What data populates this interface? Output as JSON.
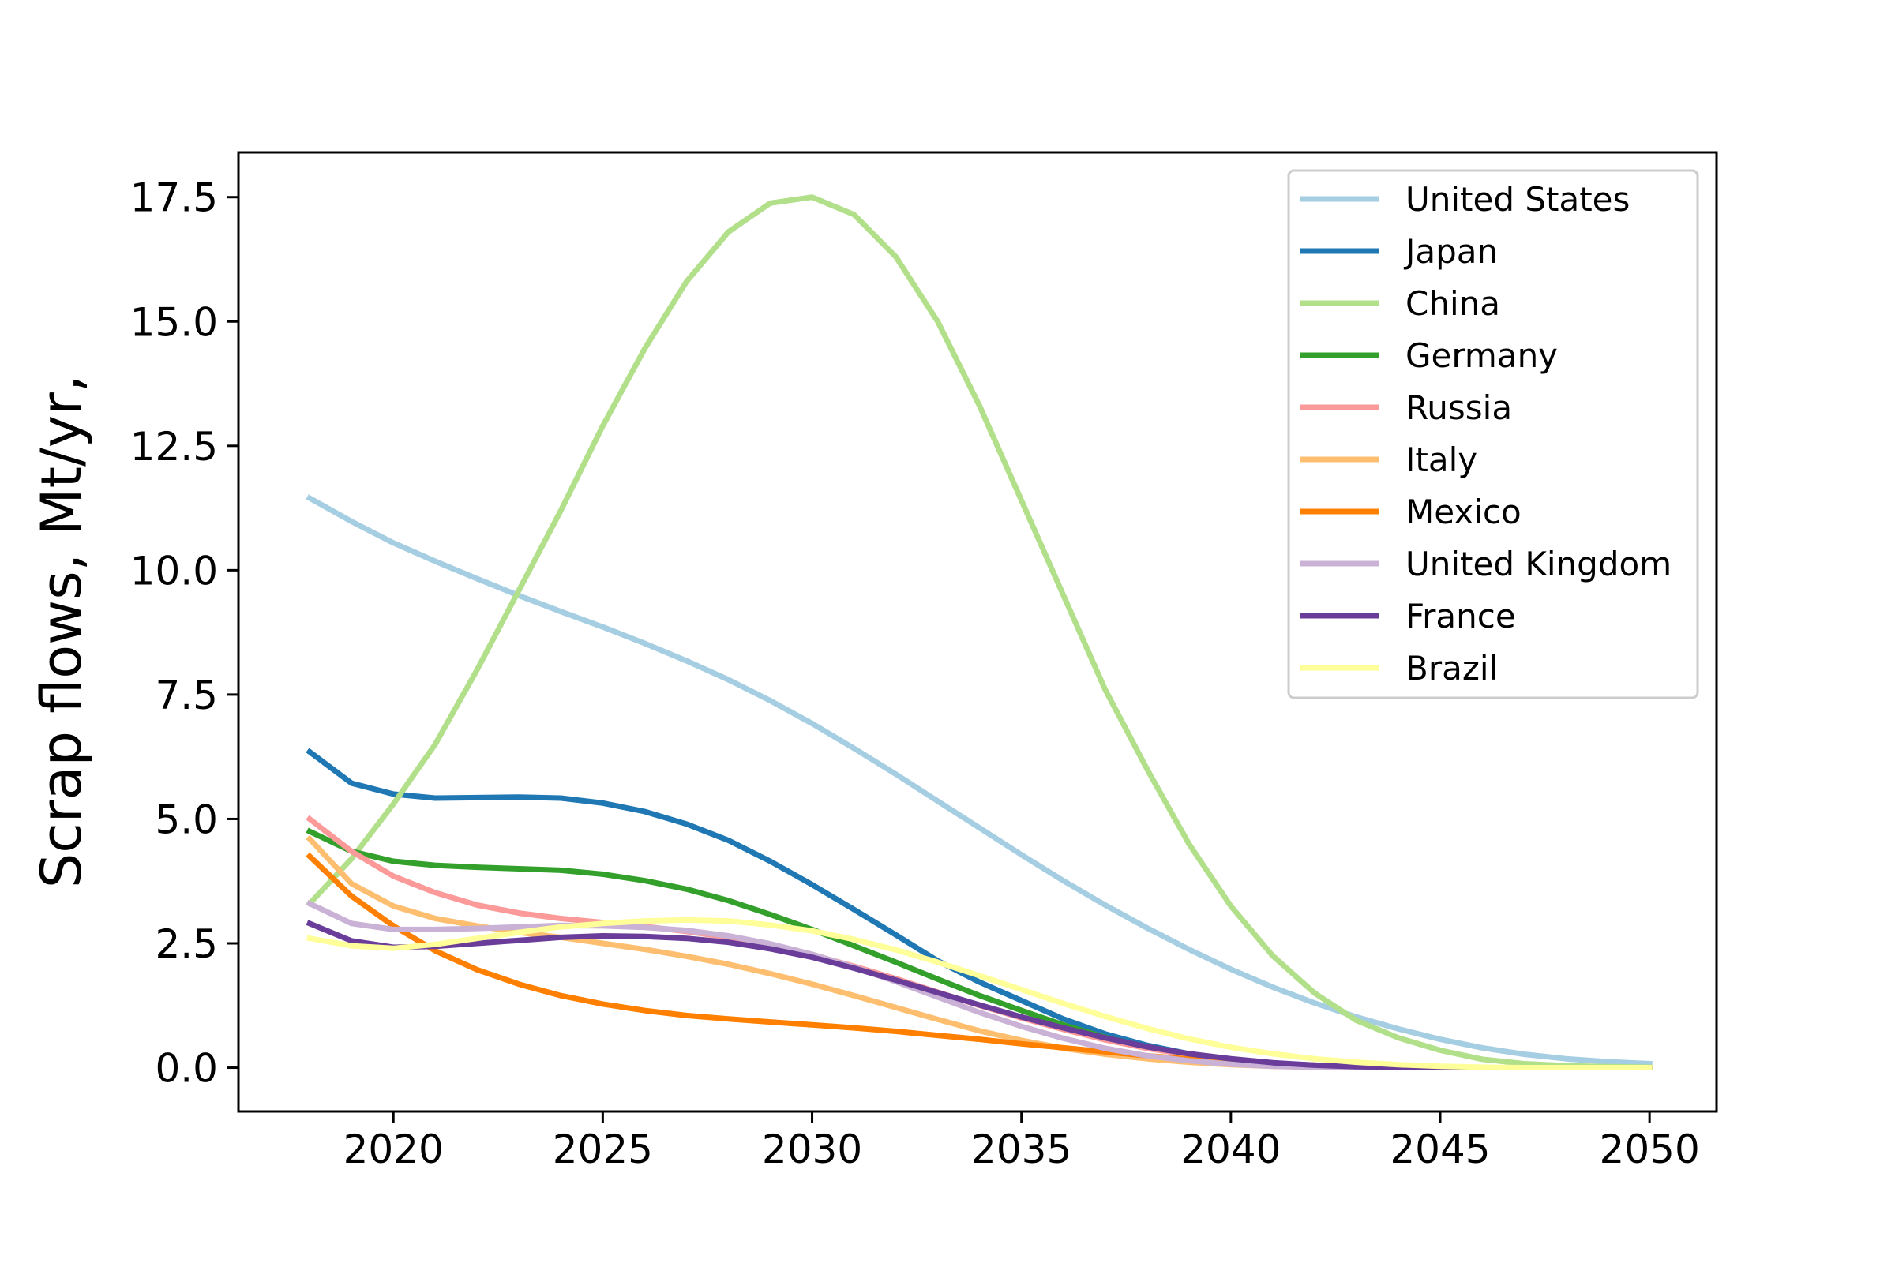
{
  "chart_data": {
    "type": "line",
    "title": "",
    "xlabel": "",
    "ylabel": "Scrap flows, Mt/yr,",
    "xlim": [
      2016.3,
      2051.6
    ],
    "ylim": [
      -0.88,
      18.4
    ],
    "xticks": [
      2020,
      2025,
      2030,
      2035,
      2040,
      2045,
      2050
    ],
    "xtick_labels": [
      "2020",
      "2025",
      "2030",
      "2035",
      "2040",
      "2045",
      "2050"
    ],
    "yticks": [
      0.0,
      2.5,
      5.0,
      7.5,
      10.0,
      12.5,
      15.0,
      17.5
    ],
    "ytick_labels": [
      "0.0",
      "2.5",
      "5.0",
      "7.5",
      "10.0",
      "12.5",
      "15.0",
      "17.5"
    ],
    "grid": false,
    "legend_position": "top-right",
    "x": [
      2018,
      2019,
      2020,
      2021,
      2022,
      2023,
      2024,
      2025,
      2026,
      2027,
      2028,
      2029,
      2030,
      2031,
      2032,
      2033,
      2034,
      2035,
      2036,
      2037,
      2038,
      2039,
      2040,
      2041,
      2042,
      2043,
      2044,
      2045,
      2046,
      2047,
      2048,
      2049,
      2050
    ],
    "series": [
      {
        "name": "United States",
        "color": "#a6cee3",
        "values": [
          11.45,
          10.98,
          10.55,
          10.18,
          9.83,
          9.49,
          9.17,
          8.86,
          8.53,
          8.18,
          7.8,
          7.38,
          6.92,
          6.42,
          5.9,
          5.36,
          4.82,
          4.28,
          3.76,
          3.27,
          2.81,
          2.38,
          1.98,
          1.62,
          1.3,
          1.02,
          0.78,
          0.57,
          0.4,
          0.27,
          0.18,
          0.12,
          0.08
        ]
      },
      {
        "name": "Japan",
        "color": "#1f78b4",
        "values": [
          6.35,
          5.72,
          5.5,
          5.42,
          5.43,
          5.44,
          5.42,
          5.32,
          5.15,
          4.9,
          4.57,
          4.15,
          3.68,
          3.18,
          2.67,
          2.15,
          1.72,
          1.35,
          0.98,
          0.68,
          0.45,
          0.28,
          0.16,
          0.08,
          0.04,
          0.02,
          0.01,
          0.0,
          0.0,
          0.0,
          0.0,
          0.0,
          0.0
        ]
      },
      {
        "name": "China",
        "color": "#b2df8a",
        "values": [
          3.3,
          4.2,
          5.3,
          6.5,
          8.0,
          9.6,
          11.2,
          12.9,
          14.45,
          15.8,
          16.8,
          17.38,
          17.5,
          17.15,
          16.3,
          15.0,
          13.3,
          11.4,
          9.5,
          7.6,
          6.0,
          4.5,
          3.25,
          2.25,
          1.5,
          0.95,
          0.6,
          0.35,
          0.17,
          0.08,
          0.04,
          0.02,
          0.01
        ]
      },
      {
        "name": "Germany",
        "color": "#33a02c",
        "values": [
          4.75,
          4.35,
          4.15,
          4.07,
          4.03,
          4.0,
          3.97,
          3.89,
          3.76,
          3.59,
          3.36,
          3.08,
          2.78,
          2.45,
          2.12,
          1.78,
          1.45,
          1.15,
          0.86,
          0.61,
          0.41,
          0.26,
          0.16,
          0.09,
          0.05,
          0.02,
          0.01,
          0.0,
          0.0,
          0.0,
          0.0,
          0.0,
          0.0
        ]
      },
      {
        "name": "Russia",
        "color": "#fb9a99",
        "values": [
          5.0,
          4.35,
          3.85,
          3.52,
          3.27,
          3.11,
          3.0,
          2.92,
          2.84,
          2.74,
          2.62,
          2.46,
          2.27,
          2.04,
          1.79,
          1.52,
          1.25,
          1.0,
          0.77,
          0.56,
          0.39,
          0.26,
          0.16,
          0.09,
          0.05,
          0.02,
          0.01,
          0.0,
          0.0,
          0.0,
          0.0,
          0.0,
          0.0
        ]
      },
      {
        "name": "Italy",
        "color": "#fdbf6f",
        "values": [
          4.6,
          3.7,
          3.25,
          3.0,
          2.85,
          2.72,
          2.62,
          2.5,
          2.38,
          2.24,
          2.08,
          1.89,
          1.68,
          1.45,
          1.21,
          0.97,
          0.74,
          0.55,
          0.39,
          0.27,
          0.18,
          0.11,
          0.06,
          0.03,
          0.01,
          0.0,
          0.0,
          0.0,
          0.0,
          0.0,
          0.0,
          0.0,
          0.0
        ]
      },
      {
        "name": "Mexico",
        "color": "#ff7f00",
        "values": [
          4.25,
          3.45,
          2.85,
          2.35,
          1.97,
          1.68,
          1.45,
          1.28,
          1.15,
          1.05,
          0.98,
          0.92,
          0.86,
          0.8,
          0.73,
          0.65,
          0.57,
          0.48,
          0.4,
          0.32,
          0.24,
          0.17,
          0.12,
          0.08,
          0.05,
          0.03,
          0.02,
          0.01,
          0.0,
          0.0,
          0.0,
          0.0,
          0.0
        ]
      },
      {
        "name": "United Kingdom",
        "color": "#cab2d6",
        "values": [
          3.3,
          2.9,
          2.78,
          2.78,
          2.8,
          2.83,
          2.86,
          2.85,
          2.82,
          2.76,
          2.65,
          2.49,
          2.28,
          2.02,
          1.73,
          1.42,
          1.11,
          0.83,
          0.59,
          0.39,
          0.24,
          0.14,
          0.07,
          0.03,
          0.01,
          0.0,
          0.0,
          0.0,
          0.0,
          0.0,
          0.0,
          0.0,
          0.0
        ]
      },
      {
        "name": "France",
        "color": "#6a3d9a",
        "values": [
          2.9,
          2.55,
          2.42,
          2.44,
          2.5,
          2.56,
          2.62,
          2.65,
          2.64,
          2.6,
          2.52,
          2.39,
          2.22,
          2.0,
          1.76,
          1.51,
          1.26,
          1.02,
          0.8,
          0.6,
          0.42,
          0.28,
          0.18,
          0.1,
          0.05,
          0.02,
          0.01,
          0.0,
          0.0,
          0.0,
          0.0,
          0.0,
          0.0
        ]
      },
      {
        "name": "Brazil",
        "color": "#ffff99",
        "values": [
          2.6,
          2.45,
          2.4,
          2.48,
          2.6,
          2.72,
          2.83,
          2.9,
          2.95,
          2.97,
          2.95,
          2.87,
          2.75,
          2.58,
          2.37,
          2.12,
          1.85,
          1.57,
          1.29,
          1.03,
          0.79,
          0.58,
          0.41,
          0.28,
          0.18,
          0.11,
          0.06,
          0.03,
          0.01,
          0.0,
          0.0,
          0.0,
          0.0
        ]
      }
    ]
  }
}
